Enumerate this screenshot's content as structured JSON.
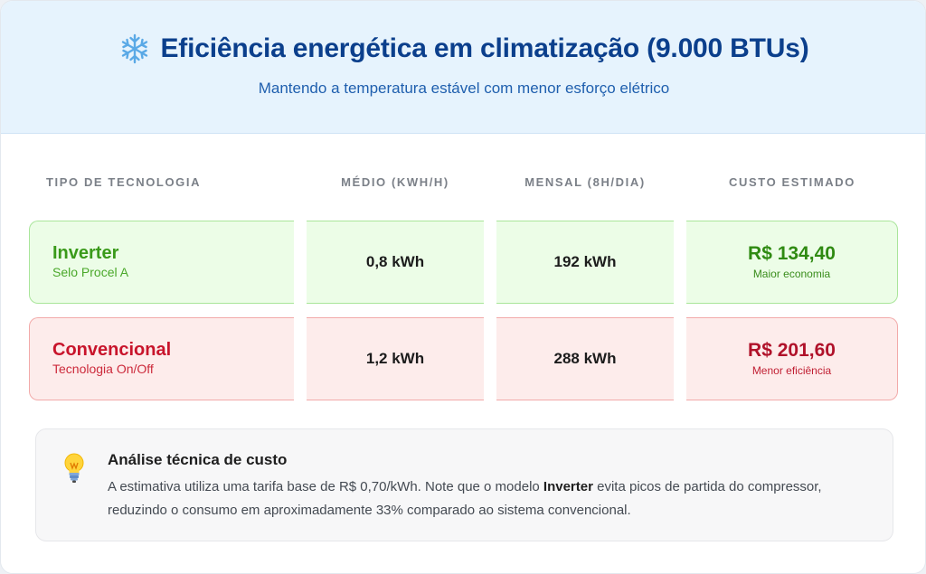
{
  "header": {
    "title": "Eficiência energética em climatização (9.000 BTUs)",
    "subtitle": "Mantendo a temperatura estável com menor esforço elétrico",
    "icon": "snowflake-icon"
  },
  "table": {
    "headers": [
      "TIPO DE TECNOLOGIA",
      "MÉDIO (KWH/H)",
      "MENSAL (8H/DIA)",
      "CUSTO ESTIMADO"
    ],
    "rows": [
      {
        "tech": "Inverter",
        "label": "Selo Procel A",
        "hourly": "0,8 kWh",
        "monthly": "192 kWh",
        "cost": "R$ 134,40",
        "cost_note": "Maior economia",
        "accent": "#3a9a1a"
      },
      {
        "tech": "Convencional",
        "label": "Tecnologia On/Off",
        "hourly": "1,2 kWh",
        "monthly": "288 kWh",
        "cost": "R$ 201,60",
        "cost_note": "Menor eficiência",
        "accent": "#c8142b"
      }
    ]
  },
  "note": {
    "icon": "lightbulb-icon",
    "title": "Análise técnica de custo",
    "text_before": "A estimativa utiliza uma tarifa base de R$ 0,70/kWh. Note que o modelo ",
    "text_bold": "Inverter",
    "text_after": " evita picos de partida do compressor, reduzindo o consumo em aproximadamente 33% comparado ao sistema convencional."
  }
}
